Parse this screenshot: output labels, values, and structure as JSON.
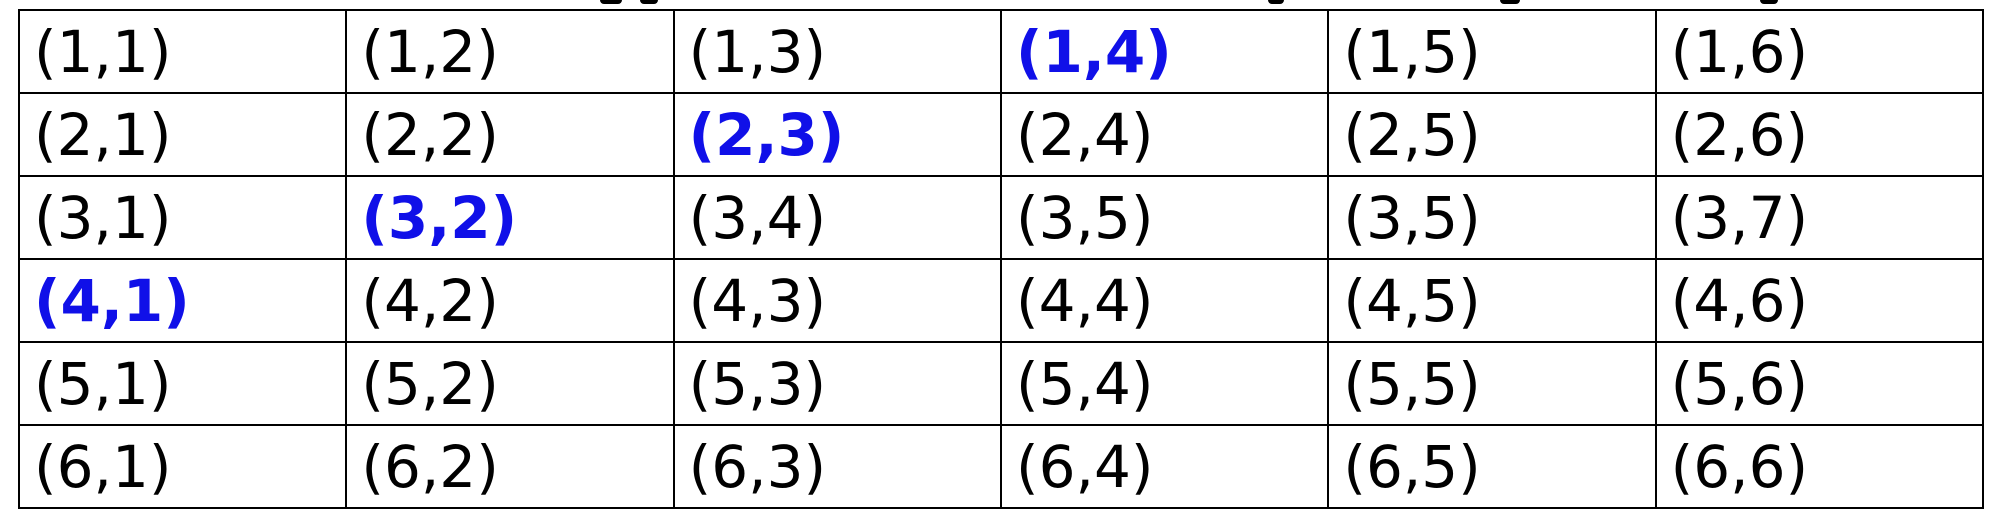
{
  "table": {
    "rows": [
      [
        "(1,1)",
        "(1,2)",
        "(1,3)",
        "(1,4)",
        "(1,5)",
        "(1,6)"
      ],
      [
        "(2,1)",
        "(2,2)",
        "(2,3)",
        "(2,4)",
        "(2,5)",
        "(2,6)"
      ],
      [
        "(3,1)",
        "(3,2)",
        "(3,4)",
        "(3,5)",
        "(3,5)",
        "(3,7)"
      ],
      [
        "(4,1)",
        "(4,2)",
        "(4,3)",
        "(4,4)",
        "(4,5)",
        "(4,6)"
      ],
      [
        "(5,1)",
        "(5,2)",
        "(5,3)",
        "(5,4)",
        "(5,5)",
        "(5,6)"
      ],
      [
        "(6,1)",
        "(6,2)",
        "(6,3)",
        "(6,4)",
        "(6,5)",
        "(6,6)"
      ]
    ],
    "highlighted": [
      [
        0,
        3
      ],
      [
        1,
        2
      ],
      [
        2,
        1
      ],
      [
        3,
        0
      ]
    ],
    "highlight_color": "#1010e8",
    "text_color": "#000000",
    "border_color": "#000000"
  }
}
